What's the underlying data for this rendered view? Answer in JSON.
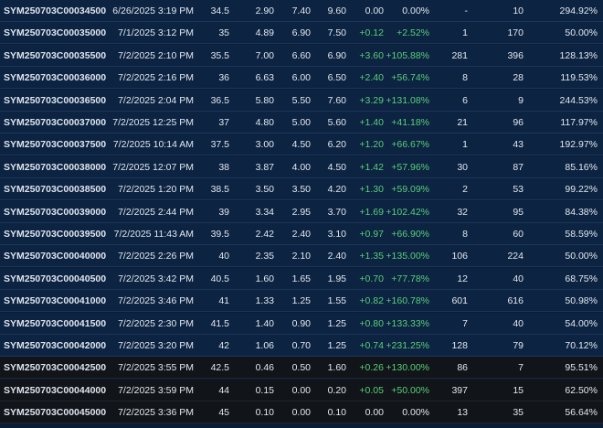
{
  "table": {
    "rows": [
      [
        "SYM250703C00034500",
        "6/26/2025 3:19 PM",
        "34.5",
        "2.90",
        "7.40",
        "9.60",
        "0.00",
        "0.00%",
        "-",
        "10",
        "294.92%"
      ],
      [
        "SYM250703C00035000",
        "7/1/2025 3:12 PM",
        "35",
        "4.89",
        "6.90",
        "7.50",
        "+0.12",
        "+2.52%",
        "1",
        "170",
        "50.00%"
      ],
      [
        "SYM250703C00035500",
        "7/2/2025 2:10 PM",
        "35.5",
        "7.00",
        "6.60",
        "6.90",
        "+3.60",
        "+105.88%",
        "281",
        "396",
        "128.13%"
      ],
      [
        "SYM250703C00036000",
        "7/2/2025 2:16 PM",
        "36",
        "6.63",
        "6.00",
        "6.50",
        "+2.40",
        "+56.74%",
        "8",
        "28",
        "119.53%"
      ],
      [
        "SYM250703C00036500",
        "7/2/2025 2:04 PM",
        "36.5",
        "5.80",
        "5.50",
        "7.60",
        "+3.29",
        "+131.08%",
        "6",
        "9",
        "244.53%"
      ],
      [
        "SYM250703C00037000",
        "7/2/2025 12:25 PM",
        "37",
        "4.80",
        "5.00",
        "5.60",
        "+1.40",
        "+41.18%",
        "21",
        "96",
        "117.97%"
      ],
      [
        "SYM250703C00037500",
        "7/2/2025 10:14 AM",
        "37.5",
        "3.00",
        "4.50",
        "6.20",
        "+1.20",
        "+66.67%",
        "1",
        "43",
        "192.97%"
      ],
      [
        "SYM250703C00038000",
        "7/2/2025 12:07 PM",
        "38",
        "3.87",
        "4.00",
        "4.50",
        "+1.42",
        "+57.96%",
        "30",
        "87",
        "85.16%"
      ],
      [
        "SYM250703C00038500",
        "7/2/2025 1:20 PM",
        "38.5",
        "3.50",
        "3.50",
        "4.20",
        "+1.30",
        "+59.09%",
        "2",
        "53",
        "99.22%"
      ],
      [
        "SYM250703C00039000",
        "7/2/2025 2:44 PM",
        "39",
        "3.34",
        "2.95",
        "3.70",
        "+1.69",
        "+102.42%",
        "32",
        "95",
        "84.38%"
      ],
      [
        "SYM250703C00039500",
        "7/2/2025 11:43 AM",
        "39.5",
        "2.42",
        "2.40",
        "3.10",
        "+0.97",
        "+66.90%",
        "8",
        "60",
        "58.59%"
      ],
      [
        "SYM250703C00040000",
        "7/2/2025 2:26 PM",
        "40",
        "2.35",
        "2.10",
        "2.40",
        "+1.35",
        "+135.00%",
        "106",
        "224",
        "50.00%"
      ],
      [
        "SYM250703C00040500",
        "7/2/2025 3:42 PM",
        "40.5",
        "1.60",
        "1.65",
        "1.95",
        "+0.70",
        "+77.78%",
        "12",
        "40",
        "68.75%"
      ],
      [
        "SYM250703C00041000",
        "7/2/2025 3:46 PM",
        "41",
        "1.33",
        "1.25",
        "1.55",
        "+0.82",
        "+160.78%",
        "601",
        "616",
        "50.98%"
      ],
      [
        "SYM250703C00041500",
        "7/2/2025 2:30 PM",
        "41.5",
        "1.40",
        "0.90",
        "1.25",
        "+0.80",
        "+133.33%",
        "7",
        "40",
        "54.00%"
      ],
      [
        "SYM250703C00042000",
        "7/2/2025 3:20 PM",
        "42",
        "1.06",
        "0.70",
        "1.25",
        "+0.74",
        "+231.25%",
        "128",
        "79",
        "70.12%"
      ],
      [
        "SYM250703C00042500",
        "7/2/2025 3:55 PM",
        "42.5",
        "0.46",
        "0.50",
        "1.60",
        "+0.26",
        "+130.00%",
        "86",
        "7",
        "95.51%"
      ],
      [
        "SYM250703C00044000",
        "7/2/2025 3:59 PM",
        "44",
        "0.15",
        "0.00",
        "0.20",
        "+0.05",
        "+50.00%",
        "397",
        "15",
        "62.50%"
      ],
      [
        "SYM250703C00045000",
        "7/2/2025 3:36 PM",
        "45",
        "0.10",
        "0.00",
        "0.10",
        "0.00",
        "0.00%",
        "13",
        "35",
        "56.64%"
      ]
    ]
  }
}
